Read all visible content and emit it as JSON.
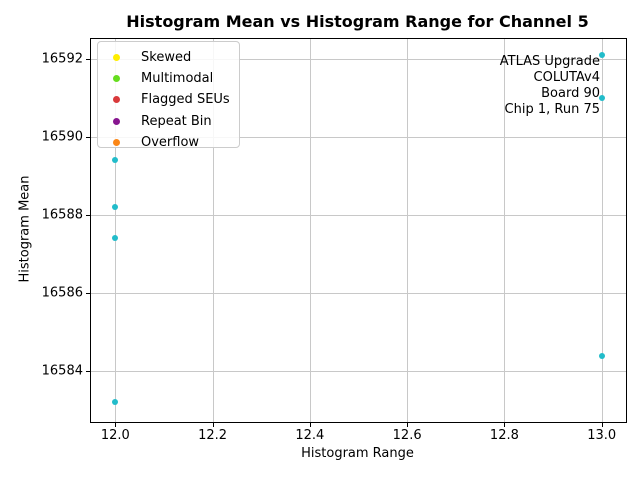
{
  "title": "Histogram Mean vs Histogram Range for Channel 5",
  "chart_data": {
    "type": "scatter",
    "title": "Histogram Mean vs Histogram Range for Channel 5",
    "xlabel": "Histogram Range",
    "ylabel": "Histogram Mean",
    "xlim": [
      11.95,
      13.05
    ],
    "ylim": [
      16582.7,
      16592.5
    ],
    "xticks": [
      12.0,
      12.2,
      12.4,
      12.6,
      12.8,
      13.0
    ],
    "xtick_labels": [
      "12.0",
      "12.2",
      "12.4",
      "12.6",
      "12.8",
      "13.0"
    ],
    "yticks": [
      16584,
      16586,
      16588,
      16590,
      16592
    ],
    "ytick_labels": [
      "16584",
      "16586",
      "16588",
      "16590",
      "16592"
    ],
    "grid": true,
    "legend_position": "upper left",
    "series": [
      {
        "name": "channel-5-points",
        "color": "#22bcca",
        "points": [
          {
            "x": 12.0,
            "y": 16589.4
          },
          {
            "x": 12.0,
            "y": 16588.2
          },
          {
            "x": 12.0,
            "y": 16587.4
          },
          {
            "x": 12.0,
            "y": 16583.2
          },
          {
            "x": 13.0,
            "y": 16592.1
          },
          {
            "x": 13.0,
            "y": 16591.0
          },
          {
            "x": 13.0,
            "y": 16584.4
          }
        ]
      }
    ],
    "legend": [
      {
        "label": "Skewed",
        "color": "#ffee00"
      },
      {
        "label": "Multimodal",
        "color": "#66dd1e"
      },
      {
        "label": "Flagged SEUs",
        "color": "#d9393b"
      },
      {
        "label": "Repeat Bin",
        "color": "#87158f"
      },
      {
        "label": "Overflow",
        "color": "#fb8717"
      }
    ],
    "annotation_lines": [
      "ATLAS Upgrade",
      "COLUTAv4",
      "Board 90",
      "Chip 1, Run 75"
    ]
  },
  "colors": {
    "grid": "#c8c8c8",
    "spine": "#000000",
    "background": "#ffffff",
    "point": "#22bcca"
  }
}
